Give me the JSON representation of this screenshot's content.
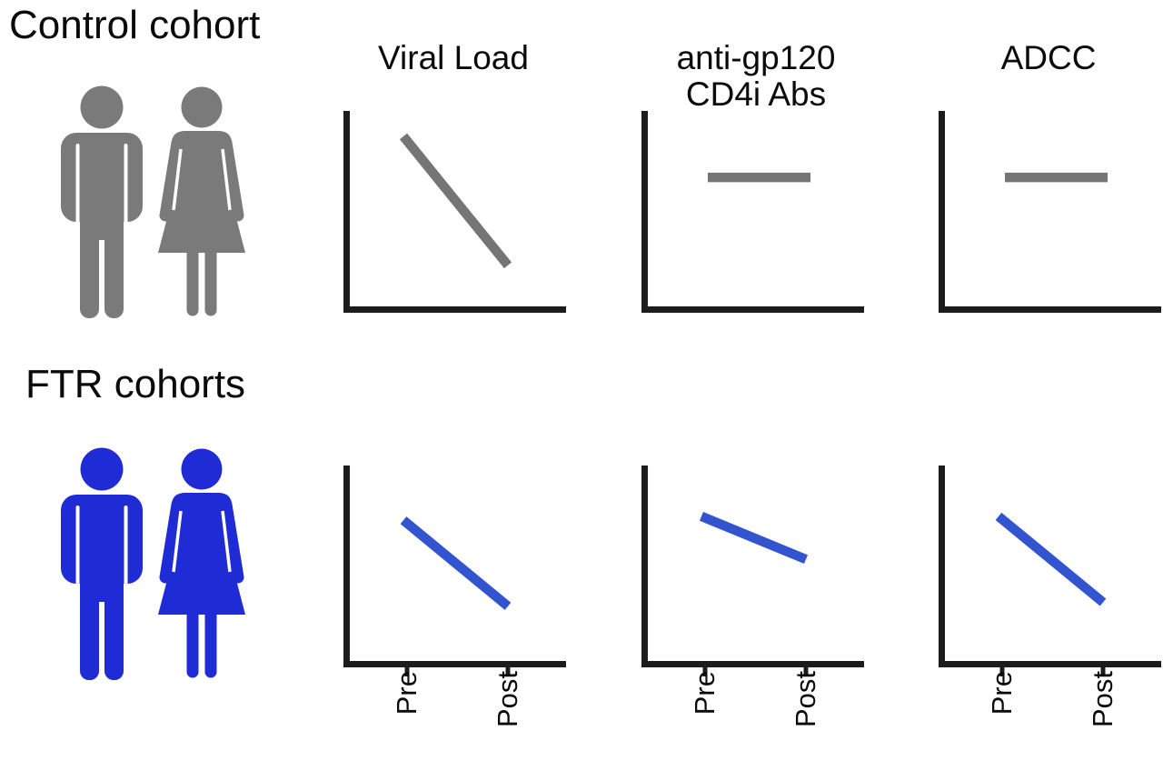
{
  "figure": {
    "background": "#ffffff"
  },
  "colors": {
    "ink": "#0a0a0a",
    "axis": "#1c1c1c",
    "gray": "#757575",
    "gray_icon": "#7a7a7a",
    "blue_line": "#3354cf",
    "blue_icon": "#1f2bd4"
  },
  "sections": [
    {
      "label": "Control cohort",
      "icons": [
        "man-icon",
        "woman-icon"
      ],
      "color_key": "gray_icon"
    },
    {
      "label": "FTR cohorts",
      "icons": [
        "man-icon",
        "woman-icon"
      ],
      "color_key": "blue_icon"
    }
  ],
  "columns": [
    {
      "title": "Viral Load",
      "title_lines": [
        "Viral Load"
      ]
    },
    {
      "title": "anti-gp120 CD4i Abs",
      "title_lines": [
        "anti-gp120",
        "CD4i Abs"
      ]
    },
    {
      "title": "ADCC",
      "title_lines": [
        "ADCC"
      ]
    }
  ],
  "x_axis": {
    "tick_labels": [
      "Pre",
      "Post"
    ]
  },
  "chart_data": [
    {
      "type": "line",
      "row": "Control cohort",
      "column": "Viral Load",
      "x": [
        "Pre",
        "Post"
      ],
      "values_relative": [
        0.87,
        0.21
      ],
      "trend": "strong decrease",
      "color_key": "gray"
    },
    {
      "type": "line",
      "row": "Control cohort",
      "column": "anti-gp120 CD4i Abs",
      "x": [
        "Pre",
        "Post"
      ],
      "values_relative": [
        0.66,
        0.66
      ],
      "trend": "flat",
      "color_key": "gray"
    },
    {
      "type": "line",
      "row": "Control cohort",
      "column": "ADCC",
      "x": [
        "Pre",
        "Post"
      ],
      "values_relative": [
        0.66,
        0.66
      ],
      "trend": "flat",
      "color_key": "gray"
    },
    {
      "type": "line",
      "row": "FTR cohorts",
      "column": "Viral Load",
      "x": [
        "Pre",
        "Post"
      ],
      "values_relative": [
        0.72,
        0.28
      ],
      "trend": "decrease",
      "color_key": "blue_line"
    },
    {
      "type": "line",
      "row": "FTR cohorts",
      "column": "anti-gp120 CD4i Abs",
      "x": [
        "Pre",
        "Post"
      ],
      "values_relative": [
        0.74,
        0.52
      ],
      "trend": "slight decrease",
      "color_key": "blue_line"
    },
    {
      "type": "line",
      "row": "FTR cohorts",
      "column": "ADCC",
      "x": [
        "Pre",
        "Post"
      ],
      "values_relative": [
        0.74,
        0.3
      ],
      "trend": "decrease",
      "color_key": "blue_line"
    }
  ]
}
